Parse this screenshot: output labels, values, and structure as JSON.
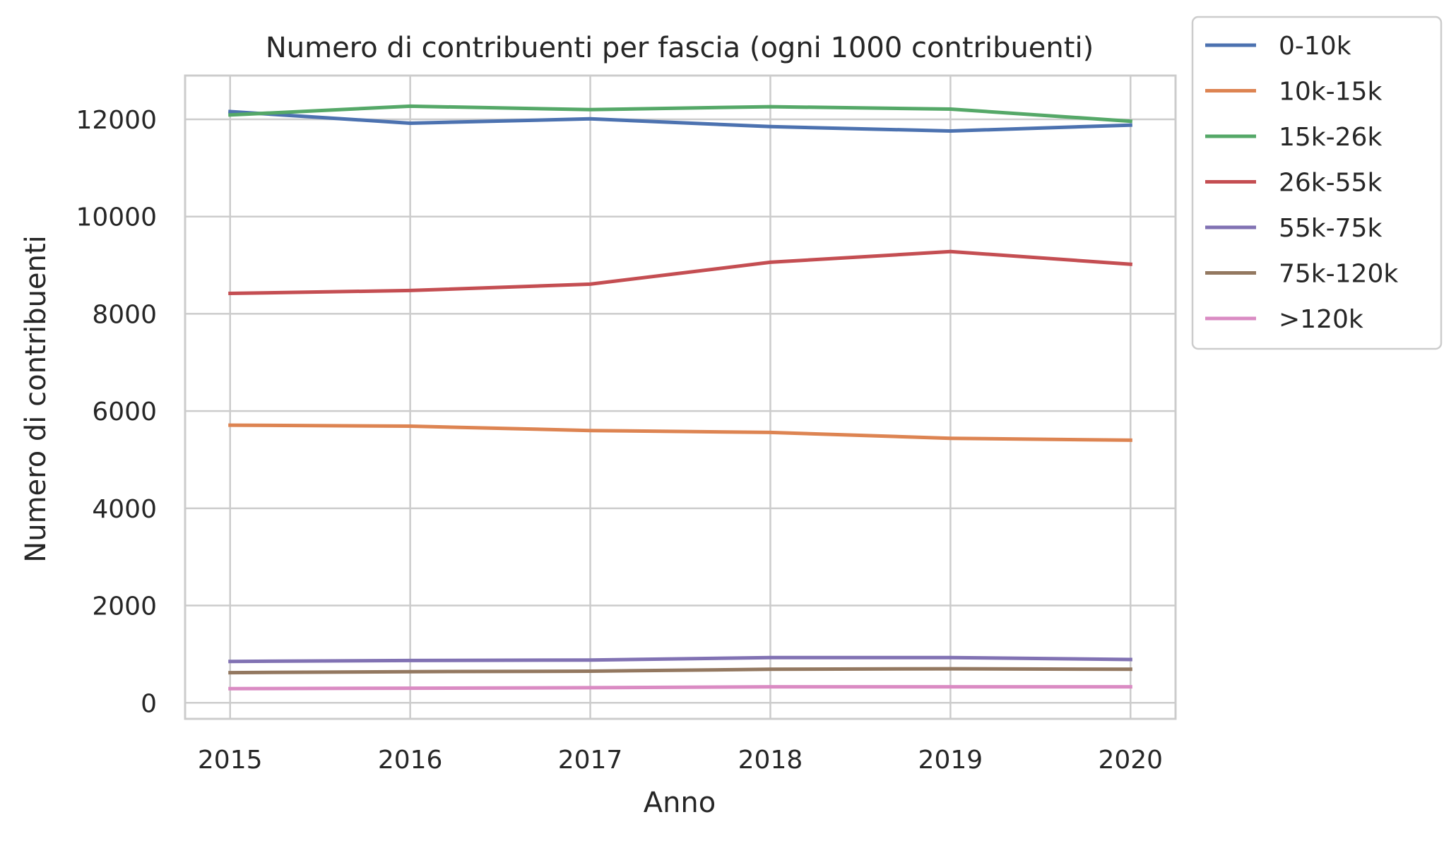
{
  "chart_data": {
    "type": "line",
    "title": "Numero di contribuenti per fascia (ogni 1000 contribuenti)",
    "xlabel": "Anno",
    "ylabel": "Numero di contribuenti",
    "x": [
      2015,
      2016,
      2017,
      2018,
      2019,
      2020
    ],
    "x_ticks": [
      "2015",
      "2016",
      "2017",
      "2018",
      "2019",
      "2020"
    ],
    "y_ticks": [
      "0",
      "2000",
      "4000",
      "6000",
      "8000",
      "10000",
      "12000"
    ],
    "y_tick_values": [
      0,
      2000,
      4000,
      6000,
      8000,
      10000,
      12000
    ],
    "ylim": [
      -330,
      12900
    ],
    "xlim": [
      2014.75,
      2020.25
    ],
    "grid": true,
    "legend_position": "outside-top-right",
    "series": [
      {
        "name": "0-10k",
        "color": "#4c72b0",
        "values": [
          12160,
          11920,
          12010,
          11850,
          11760,
          11880
        ]
      },
      {
        "name": "10k-15k",
        "color": "#dd8452",
        "values": [
          5710,
          5690,
          5600,
          5560,
          5440,
          5400
        ]
      },
      {
        "name": "15k-26k",
        "color": "#55a868",
        "values": [
          12090,
          12270,
          12200,
          12260,
          12210,
          11960
        ]
      },
      {
        "name": "26k-55k",
        "color": "#c44e52",
        "values": [
          8420,
          8480,
          8610,
          9060,
          9280,
          9020
        ]
      },
      {
        "name": "55k-75k",
        "color": "#8172b3",
        "values": [
          850,
          870,
          880,
          930,
          930,
          890
        ]
      },
      {
        "name": "75k-120k",
        "color": "#937860",
        "values": [
          620,
          640,
          650,
          690,
          700,
          690
        ]
      },
      {
        "name": ">120k",
        "color": "#da8bc3",
        "values": [
          290,
          300,
          310,
          330,
          330,
          330
        ]
      }
    ]
  }
}
